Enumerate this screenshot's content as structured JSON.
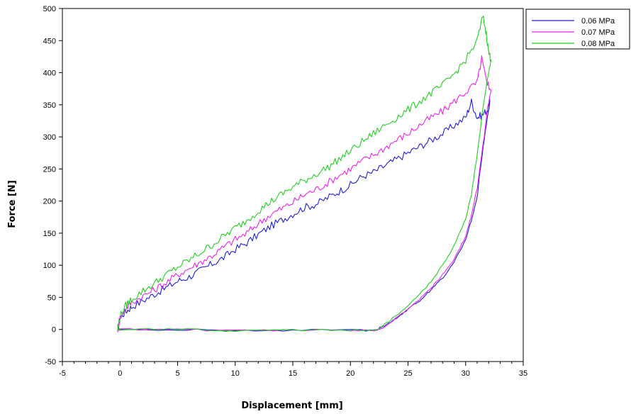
{
  "chart_data": {
    "type": "line",
    "title": "",
    "xlabel": "Displacement [mm]",
    "ylabel": "Force [N]",
    "xlim": [
      -5,
      35
    ],
    "ylim": [
      -50,
      500
    ],
    "xticks": [
      -5,
      0,
      5,
      10,
      15,
      20,
      25,
      30,
      35
    ],
    "yticks": [
      -50,
      0,
      50,
      100,
      150,
      200,
      250,
      300,
      350,
      400,
      450,
      500
    ],
    "grid": false,
    "legend_position": "top-right-outside",
    "series": [
      {
        "name": "0.06 MPa",
        "color": "#1f1fd6",
        "loading": [
          [
            -0.2,
            0
          ],
          [
            0,
            18
          ],
          [
            0.5,
            28
          ],
          [
            1,
            35
          ],
          [
            2,
            45
          ],
          [
            3,
            55
          ],
          [
            4,
            65
          ],
          [
            5,
            75
          ],
          [
            6,
            82
          ],
          [
            7,
            92
          ],
          [
            8,
            102
          ],
          [
            9,
            112
          ],
          [
            10,
            125
          ],
          [
            11,
            135
          ],
          [
            12,
            148
          ],
          [
            13,
            160
          ],
          [
            14,
            170
          ],
          [
            15,
            180
          ],
          [
            16,
            190
          ],
          [
            17,
            195
          ],
          [
            18,
            205
          ],
          [
            19,
            215
          ],
          [
            20,
            225
          ],
          [
            21,
            238
          ],
          [
            22,
            245
          ],
          [
            23,
            255
          ],
          [
            24,
            265
          ],
          [
            25,
            275
          ],
          [
            26,
            285
          ],
          [
            27,
            295
          ],
          [
            28,
            305
          ],
          [
            29,
            318
          ],
          [
            30,
            330
          ],
          [
            30.5,
            355
          ],
          [
            31,
            330
          ],
          [
            31.5,
            335
          ],
          [
            32,
            345
          ],
          [
            32.1,
            355
          ]
        ],
        "unloading": [
          [
            32.1,
            355
          ],
          [
            31.8,
            320
          ],
          [
            31.5,
            280
          ],
          [
            31.2,
            240
          ],
          [
            31,
            205
          ],
          [
            30.5,
            170
          ],
          [
            30,
            140
          ],
          [
            29,
            105
          ],
          [
            28,
            80
          ],
          [
            27,
            62
          ],
          [
            26,
            45
          ],
          [
            25,
            32
          ],
          [
            24,
            18
          ],
          [
            23,
            6
          ],
          [
            22.5,
            2
          ],
          [
            22,
            -2
          ],
          [
            20,
            -1
          ],
          [
            15,
            -1
          ],
          [
            10,
            -2
          ],
          [
            5,
            0
          ],
          [
            0,
            0
          ],
          [
            -0.2,
            0
          ]
        ]
      },
      {
        "name": "0.07 MPa",
        "color": "#ee22ee",
        "loading": [
          [
            -0.2,
            0
          ],
          [
            0,
            18
          ],
          [
            0.5,
            33
          ],
          [
            1,
            42
          ],
          [
            2,
            52
          ],
          [
            3,
            62
          ],
          [
            4,
            73
          ],
          [
            5,
            85
          ],
          [
            6,
            95
          ],
          [
            7,
            105
          ],
          [
            8,
            115
          ],
          [
            9,
            128
          ],
          [
            10,
            140
          ],
          [
            11,
            150
          ],
          [
            12,
            165
          ],
          [
            13,
            178
          ],
          [
            14,
            188
          ],
          [
            15,
            198
          ],
          [
            16,
            210
          ],
          [
            17,
            218
          ],
          [
            18,
            228
          ],
          [
            19,
            240
          ],
          [
            20,
            250
          ],
          [
            21,
            262
          ],
          [
            22,
            272
          ],
          [
            23,
            283
          ],
          [
            24,
            295
          ],
          [
            25,
            305
          ],
          [
            26,
            318
          ],
          [
            27,
            330
          ],
          [
            28,
            340
          ],
          [
            29,
            355
          ],
          [
            30,
            370
          ],
          [
            31,
            385
          ],
          [
            31.4,
            422
          ],
          [
            31.7,
            395
          ],
          [
            32,
            380
          ],
          [
            32.2,
            372
          ]
        ],
        "unloading": [
          [
            32.2,
            372
          ],
          [
            31.9,
            345
          ],
          [
            31.6,
            300
          ],
          [
            31.3,
            260
          ],
          [
            31,
            220
          ],
          [
            30.5,
            178
          ],
          [
            30,
            145
          ],
          [
            29,
            110
          ],
          [
            28,
            85
          ],
          [
            27,
            65
          ],
          [
            26,
            47
          ],
          [
            25,
            32
          ],
          [
            24,
            18
          ],
          [
            23,
            5
          ],
          [
            22.5,
            0
          ],
          [
            22,
            -2
          ],
          [
            20,
            -1
          ],
          [
            15,
            -1
          ],
          [
            10,
            -2
          ],
          [
            5,
            0
          ],
          [
            0,
            0
          ],
          [
            -0.2,
            0
          ]
        ]
      },
      {
        "name": "0.08 MPa",
        "color": "#1fcf1f",
        "loading": [
          [
            -0.2,
            0
          ],
          [
            0,
            20
          ],
          [
            0.5,
            37
          ],
          [
            1,
            47
          ],
          [
            2,
            60
          ],
          [
            3,
            72
          ],
          [
            4,
            85
          ],
          [
            5,
            97
          ],
          [
            6,
            108
          ],
          [
            7,
            120
          ],
          [
            8,
            132
          ],
          [
            9,
            145
          ],
          [
            10,
            158
          ],
          [
            11,
            170
          ],
          [
            12,
            185
          ],
          [
            13,
            198
          ],
          [
            14,
            210
          ],
          [
            15,
            222
          ],
          [
            16,
            232
          ],
          [
            17,
            242
          ],
          [
            18,
            252
          ],
          [
            19,
            265
          ],
          [
            20,
            278
          ],
          [
            21,
            292
          ],
          [
            22,
            305
          ],
          [
            23,
            318
          ],
          [
            24,
            330
          ],
          [
            25,
            342
          ],
          [
            26,
            355
          ],
          [
            27,
            368
          ],
          [
            28,
            380
          ],
          [
            29,
            398
          ],
          [
            30,
            420
          ],
          [
            31,
            450
          ],
          [
            31.5,
            488
          ],
          [
            31.8,
            460
          ],
          [
            32,
            432
          ],
          [
            32.2,
            420
          ]
        ],
        "unloading": [
          [
            32.2,
            420
          ],
          [
            31.9,
            390
          ],
          [
            31.5,
            345
          ],
          [
            31.2,
            300
          ],
          [
            30.9,
            260
          ],
          [
            30.5,
            210
          ],
          [
            30,
            172
          ],
          [
            29,
            130
          ],
          [
            28,
            100
          ],
          [
            27,
            75
          ],
          [
            26,
            55
          ],
          [
            25,
            38
          ],
          [
            24,
            22
          ],
          [
            23,
            8
          ],
          [
            22.6,
            2
          ],
          [
            22,
            -2
          ],
          [
            20,
            -1
          ],
          [
            15,
            -1
          ],
          [
            10,
            -2
          ],
          [
            5,
            0
          ],
          [
            0,
            0
          ],
          [
            -0.2,
            0
          ]
        ]
      }
    ]
  }
}
